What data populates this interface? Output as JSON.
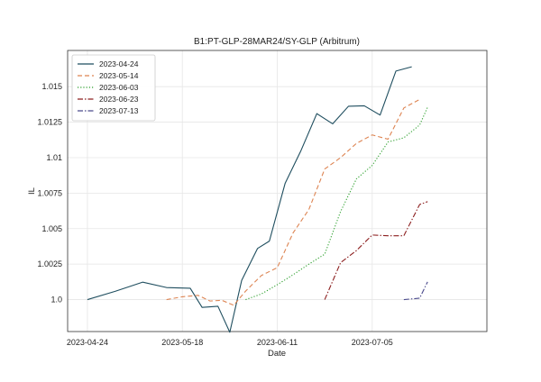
{
  "chart_data": {
    "type": "line",
    "title": "B1:PT-GLP-28MAR24/SY-GLP (Arbitrum)",
    "xlabel": "Date",
    "ylabel": "IL",
    "xlim": [
      "2023-04-19",
      "2023-08-03"
    ],
    "ylim": [
      0.99775,
      1.01755
    ],
    "x_ticks": [
      "2023-04-24",
      "2023-05-18",
      "2023-06-11",
      "2023-07-05"
    ],
    "y_ticks": [
      1.0,
      1.0025,
      1.005,
      1.0075,
      1.01,
      1.0125,
      1.015
    ],
    "y_tick_labels": [
      "1.0",
      "1.0025",
      "1.005",
      "1.0075",
      "1.01",
      "1.0125",
      "1.015"
    ],
    "grid": true,
    "legend_position": "top-left",
    "series": [
      {
        "name": "2023-04-24",
        "color": "#1f4e5f",
        "dash": "solid",
        "points": [
          [
            "2023-04-24",
            1.0
          ],
          [
            "2023-05-01",
            1.00058
          ],
          [
            "2023-05-08",
            1.00123
          ],
          [
            "2023-05-14",
            1.00085
          ],
          [
            "2023-05-20",
            1.0008
          ],
          [
            "2023-05-23",
            0.99945
          ],
          [
            "2023-05-27",
            0.99953
          ],
          [
            "2023-05-30",
            0.9977
          ],
          [
            "2023-06-02",
            1.00135
          ],
          [
            "2023-06-06",
            1.0036
          ],
          [
            "2023-06-09",
            1.00412
          ],
          [
            "2023-06-13",
            1.0082
          ],
          [
            "2023-06-17",
            1.0105
          ],
          [
            "2023-06-21",
            1.0131
          ],
          [
            "2023-06-25",
            1.01238
          ],
          [
            "2023-06-29",
            1.01362
          ],
          [
            "2023-07-03",
            1.01365
          ],
          [
            "2023-07-07",
            1.013
          ],
          [
            "2023-07-11",
            1.0161
          ],
          [
            "2023-07-15",
            1.0164
          ]
        ]
      },
      {
        "name": "2023-05-14",
        "color": "#dd8452",
        "dash": "dashed",
        "points": [
          [
            "2023-05-14",
            1.0
          ],
          [
            "2023-05-18",
            1.0002
          ],
          [
            "2023-05-22",
            1.0003
          ],
          [
            "2023-05-25",
            0.9999
          ],
          [
            "2023-05-28",
            0.99995
          ],
          [
            "2023-05-31",
            0.9996
          ],
          [
            "2023-06-03",
            1.0006
          ],
          [
            "2023-06-07",
            1.0017
          ],
          [
            "2023-06-11",
            1.00225
          ],
          [
            "2023-06-15",
            1.0047
          ],
          [
            "2023-06-19",
            1.00635
          ],
          [
            "2023-06-23",
            1.0092
          ],
          [
            "2023-06-27",
            1.01
          ],
          [
            "2023-07-01",
            1.011
          ],
          [
            "2023-07-05",
            1.0116
          ],
          [
            "2023-07-09",
            1.0113
          ],
          [
            "2023-07-13",
            1.0135
          ],
          [
            "2023-07-17",
            1.0141
          ]
        ]
      },
      {
        "name": "2023-06-03",
        "color": "#2ca02c",
        "dash": "dotted",
        "points": [
          [
            "2023-06-03",
            1.0
          ],
          [
            "2023-06-07",
            1.0004
          ],
          [
            "2023-06-11",
            1.00105
          ],
          [
            "2023-06-15",
            1.00175
          ],
          [
            "2023-06-19",
            1.0025
          ],
          [
            "2023-06-23",
            1.0032
          ],
          [
            "2023-06-27",
            1.0062
          ],
          [
            "2023-07-01",
            1.0085
          ],
          [
            "2023-07-05",
            1.00945
          ],
          [
            "2023-07-09",
            1.0111
          ],
          [
            "2023-07-13",
            1.0114
          ],
          [
            "2023-07-17",
            1.0123
          ],
          [
            "2023-07-19",
            1.01355
          ]
        ]
      },
      {
        "name": "2023-06-23",
        "color": "#8c1f1f",
        "dash": "dashdot",
        "points": [
          [
            "2023-06-23",
            1.0
          ],
          [
            "2023-06-27",
            1.0026
          ],
          [
            "2023-07-01",
            1.00345
          ],
          [
            "2023-07-05",
            1.00455
          ],
          [
            "2023-07-09",
            1.0045
          ],
          [
            "2023-07-13",
            1.0045
          ],
          [
            "2023-07-17",
            1.0067
          ],
          [
            "2023-07-19",
            1.0069
          ]
        ]
      },
      {
        "name": "2023-07-13",
        "color": "#4a4a8c",
        "dash": "dashdot",
        "points": [
          [
            "2023-07-13",
            1.0
          ],
          [
            "2023-07-17",
            1.0001
          ],
          [
            "2023-07-19",
            1.00125
          ]
        ]
      }
    ]
  }
}
